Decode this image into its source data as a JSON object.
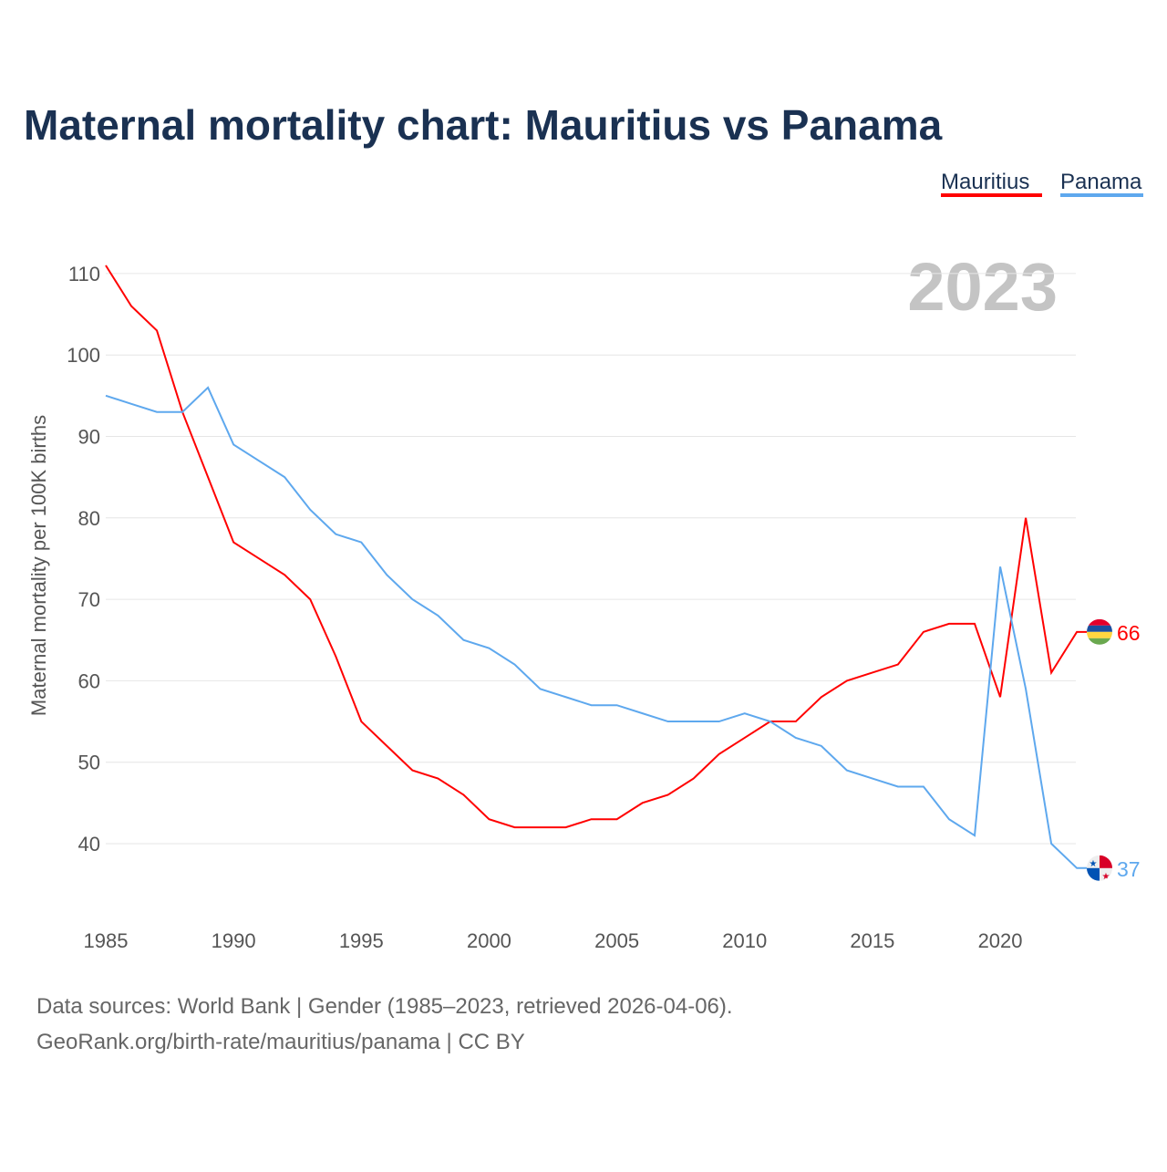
{
  "chart_data": {
    "type": "line",
    "title": "Maternal mortality chart: Mauritius vs Panama",
    "ylabel": "Maternal mortality per 100K births",
    "xlabel": "",
    "year_label": "2023",
    "x": [
      1985,
      1986,
      1987,
      1988,
      1989,
      1990,
      1991,
      1992,
      1993,
      1994,
      1995,
      1996,
      1997,
      1998,
      1999,
      2000,
      2001,
      2002,
      2003,
      2004,
      2005,
      2006,
      2007,
      2008,
      2009,
      2010,
      2011,
      2012,
      2013,
      2014,
      2015,
      2016,
      2017,
      2018,
      2019,
      2020,
      2021,
      2022,
      2023
    ],
    "xticks": [
      "1985",
      "1990",
      "1995",
      "2000",
      "2005",
      "2010",
      "2015",
      "2020"
    ],
    "yticks": [
      "40",
      "50",
      "60",
      "70",
      "80",
      "90",
      "100",
      "110"
    ],
    "xlim": [
      1985,
      2023
    ],
    "ylim": [
      30,
      112
    ],
    "grid": true,
    "legend_position": "top-right",
    "series": [
      {
        "name": "Mauritius",
        "color": "#ff0000",
        "end_label": "66",
        "flag": "mauritius-flag",
        "values": [
          111,
          106,
          103,
          93,
          85,
          77,
          75,
          73,
          70,
          63,
          55,
          52,
          49,
          48,
          46,
          43,
          42,
          42,
          42,
          43,
          43,
          45,
          46,
          48,
          51,
          53,
          55,
          55,
          58,
          60,
          61,
          62,
          66,
          67,
          67,
          58,
          80,
          61,
          66
        ]
      },
      {
        "name": "Panama",
        "color": "#5ea8ee",
        "end_label": "37",
        "flag": "panama-flag",
        "values": [
          95,
          94,
          93,
          93,
          96,
          89,
          87,
          85,
          81,
          78,
          77,
          73,
          70,
          68,
          65,
          64,
          62,
          59,
          58,
          57,
          57,
          56,
          55,
          55,
          55,
          56,
          55,
          53,
          52,
          49,
          48,
          47,
          47,
          43,
          41,
          74,
          59,
          40,
          37
        ]
      }
    ]
  },
  "footer": {
    "line1": "Data sources: World Bank | Gender (1985–2023, retrieved 2026-04-06).",
    "line2": "GeoRank.org/birth-rate/mauritius/panama | CC BY"
  }
}
